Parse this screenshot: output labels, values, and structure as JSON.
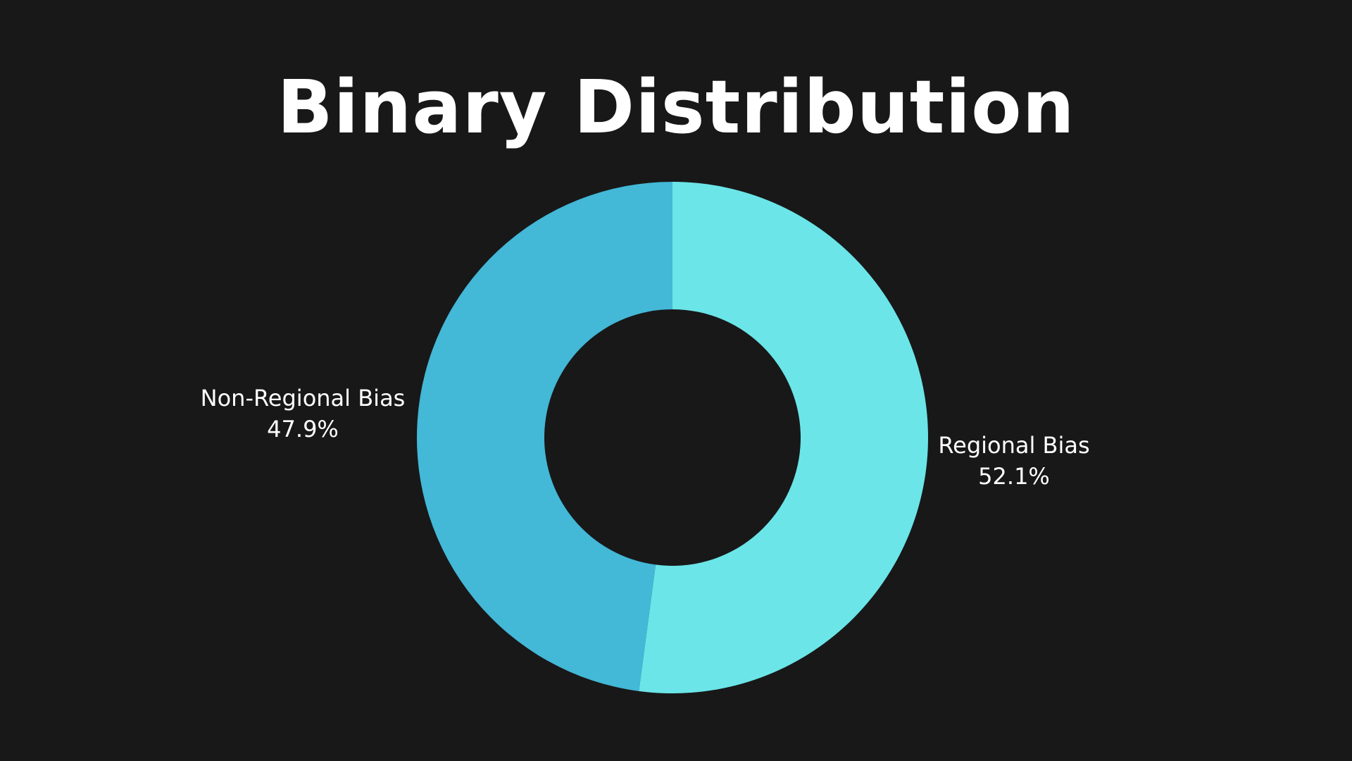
{
  "chart_data": {
    "type": "pie",
    "title": "Binary Distribution",
    "donut": true,
    "start_angle_deg": 0,
    "direction": "clockwise",
    "slices": [
      {
        "label": "Regional Bias",
        "value": 52.1,
        "display": "52.1%",
        "color": "#6BE5E8"
      },
      {
        "label": "Non-Regional Bias",
        "value": 47.9,
        "display": "47.9%",
        "color": "#43B8D7"
      }
    ]
  },
  "colors": {
    "background": "#181819",
    "text": "#FFFFFF"
  }
}
